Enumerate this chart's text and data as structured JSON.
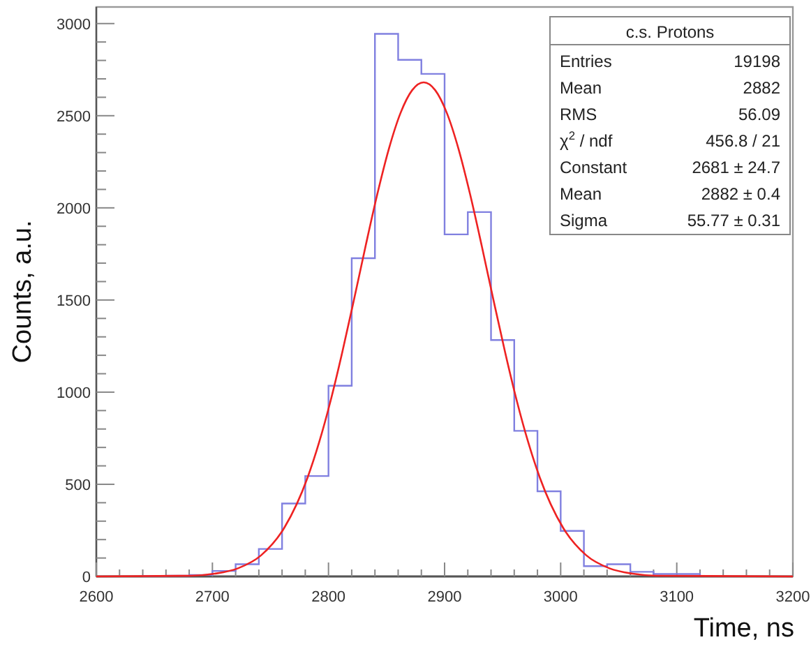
{
  "chart_data": {
    "type": "histogram",
    "xlabel": "Time, ns",
    "ylabel": "Counts, a.u.",
    "xlim": [
      2600,
      3200
    ],
    "ylim": [
      0,
      3090
    ],
    "xticks": [
      2600,
      {
        "value": 2620,
        "label": null
      },
      {
        "value": 2640,
        "label": null
      },
      {
        "value": 2660,
        "label": null
      },
      {
        "value": 2680,
        "label": null
      },
      2700,
      {
        "value": 2720,
        "label": null
      },
      {
        "value": 2740,
        "label": null
      },
      {
        "value": 2760,
        "label": null
      },
      {
        "value": 2780,
        "label": null
      },
      2800,
      {
        "value": 2820,
        "label": null
      },
      {
        "value": 2840,
        "label": null
      },
      {
        "value": 2860,
        "label": null
      },
      {
        "value": 2880,
        "label": null
      },
      2900,
      {
        "value": 2920,
        "label": null
      },
      {
        "value": 2940,
        "label": null
      },
      {
        "value": 2960,
        "label": null
      },
      {
        "value": 2980,
        "label": null
      },
      3000,
      {
        "value": 3020,
        "label": null
      },
      {
        "value": 3040,
        "label": null
      },
      {
        "value": 3060,
        "label": null
      },
      {
        "value": 3080,
        "label": null
      },
      3100,
      {
        "value": 3120,
        "label": null
      },
      {
        "value": 3140,
        "label": null
      },
      {
        "value": 3160,
        "label": null
      },
      {
        "value": 3180,
        "label": null
      },
      3200
    ],
    "yticks": [
      0,
      {
        "value": 100,
        "label": null
      },
      {
        "value": 200,
        "label": null
      },
      {
        "value": 300,
        "label": null
      },
      {
        "value": 400,
        "label": null
      },
      500,
      {
        "value": 600,
        "label": null
      },
      {
        "value": 700,
        "label": null
      },
      {
        "value": 800,
        "label": null
      },
      {
        "value": 900,
        "label": null
      },
      1000,
      {
        "value": 1100,
        "label": null
      },
      {
        "value": 1200,
        "label": null
      },
      {
        "value": 1300,
        "label": null
      },
      {
        "value": 1400,
        "label": null
      },
      1500,
      {
        "value": 1600,
        "label": null
      },
      {
        "value": 1700,
        "label": null
      },
      {
        "value": 1800,
        "label": null
      },
      {
        "value": 1900,
        "label": null
      },
      2000,
      {
        "value": 2100,
        "label": null
      },
      {
        "value": 2200,
        "label": null
      },
      {
        "value": 2300,
        "label": null
      },
      {
        "value": 2400,
        "label": null
      },
      2500,
      {
        "value": 2600,
        "label": null
      },
      {
        "value": 2700,
        "label": null
      },
      {
        "value": 2800,
        "label": null
      },
      {
        "value": 2900,
        "label": null
      },
      3000
    ],
    "series": [
      {
        "color": "#8080e0",
        "bins": [
          2640,
          2660,
          2680,
          2700,
          2720,
          2740,
          2760,
          2780,
          2800,
          2820,
          2840,
          2860,
          2880,
          2900,
          2920,
          2940,
          2960,
          2980,
          3000,
          3020,
          3040,
          3060,
          3080,
          3100,
          3120
        ],
        "values": [
          3,
          4,
          8,
          30,
          66,
          149,
          396,
          545,
          1035,
          1727,
          2944,
          2803,
          2727,
          1856,
          1977,
          1283,
          790,
          462,
          247,
          56,
          66,
          25,
          13,
          13
        ]
      },
      {
        "type": "line",
        "color": "#ee2222",
        "x": [
          2600,
          2682,
          2702,
          2722,
          2742,
          2762,
          2782,
          2792,
          2802,
          2812,
          2822,
          2832,
          2842,
          2852,
          2862,
          2872,
          2882,
          2892,
          2902,
          2912,
          2922,
          2932,
          2942,
          2952,
          2962,
          2972,
          2982,
          3002,
          3022,
          3042,
          3062,
          3082,
          3200
        ],
        "values": [
          0,
          4,
          15,
          44,
          115,
          265,
          537,
          729,
          958,
          1220,
          1503,
          1794,
          2073,
          2320,
          2514,
          2638,
          2681,
          2638,
          2514,
          2320,
          2073,
          1794,
          1503,
          1220,
          958,
          729,
          537,
          265,
          115,
          44,
          15,
          4,
          0
        ]
      }
    ],
    "annotations": [
      "c.s. Protons",
      "Entries",
      "19198",
      "Mean",
      "2882",
      "RMS",
      "56.09",
      "χ$^{2}$ / ndf",
      "456.8 / 21",
      "Constant",
      "2681 ± 24.7",
      "Mean",
      "2882 ± 0.4",
      "Sigma",
      "55.77 ± 0.31"
    ]
  }
}
